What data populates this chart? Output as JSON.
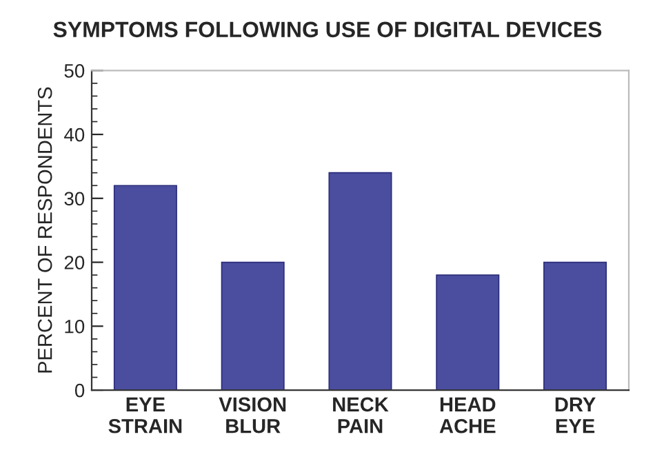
{
  "chart_data": {
    "type": "bar",
    "title": "SYMPTOMS FOLLOWING USE OF DIGITAL DEVICES",
    "ylabel": "PERCENT OF RESPONDENTS",
    "categories": [
      "EYE\nSTRAIN",
      "VISION\nBLUR",
      "NECK\nPAIN",
      "HEAD\nACHE",
      "DRY\nEYE"
    ],
    "values": [
      32,
      20,
      34,
      18,
      20
    ],
    "color": "#4b4e9e",
    "ylim": [
      0,
      50
    ],
    "yticks": [
      0,
      10,
      20,
      30,
      40,
      50
    ],
    "grid": false
  }
}
